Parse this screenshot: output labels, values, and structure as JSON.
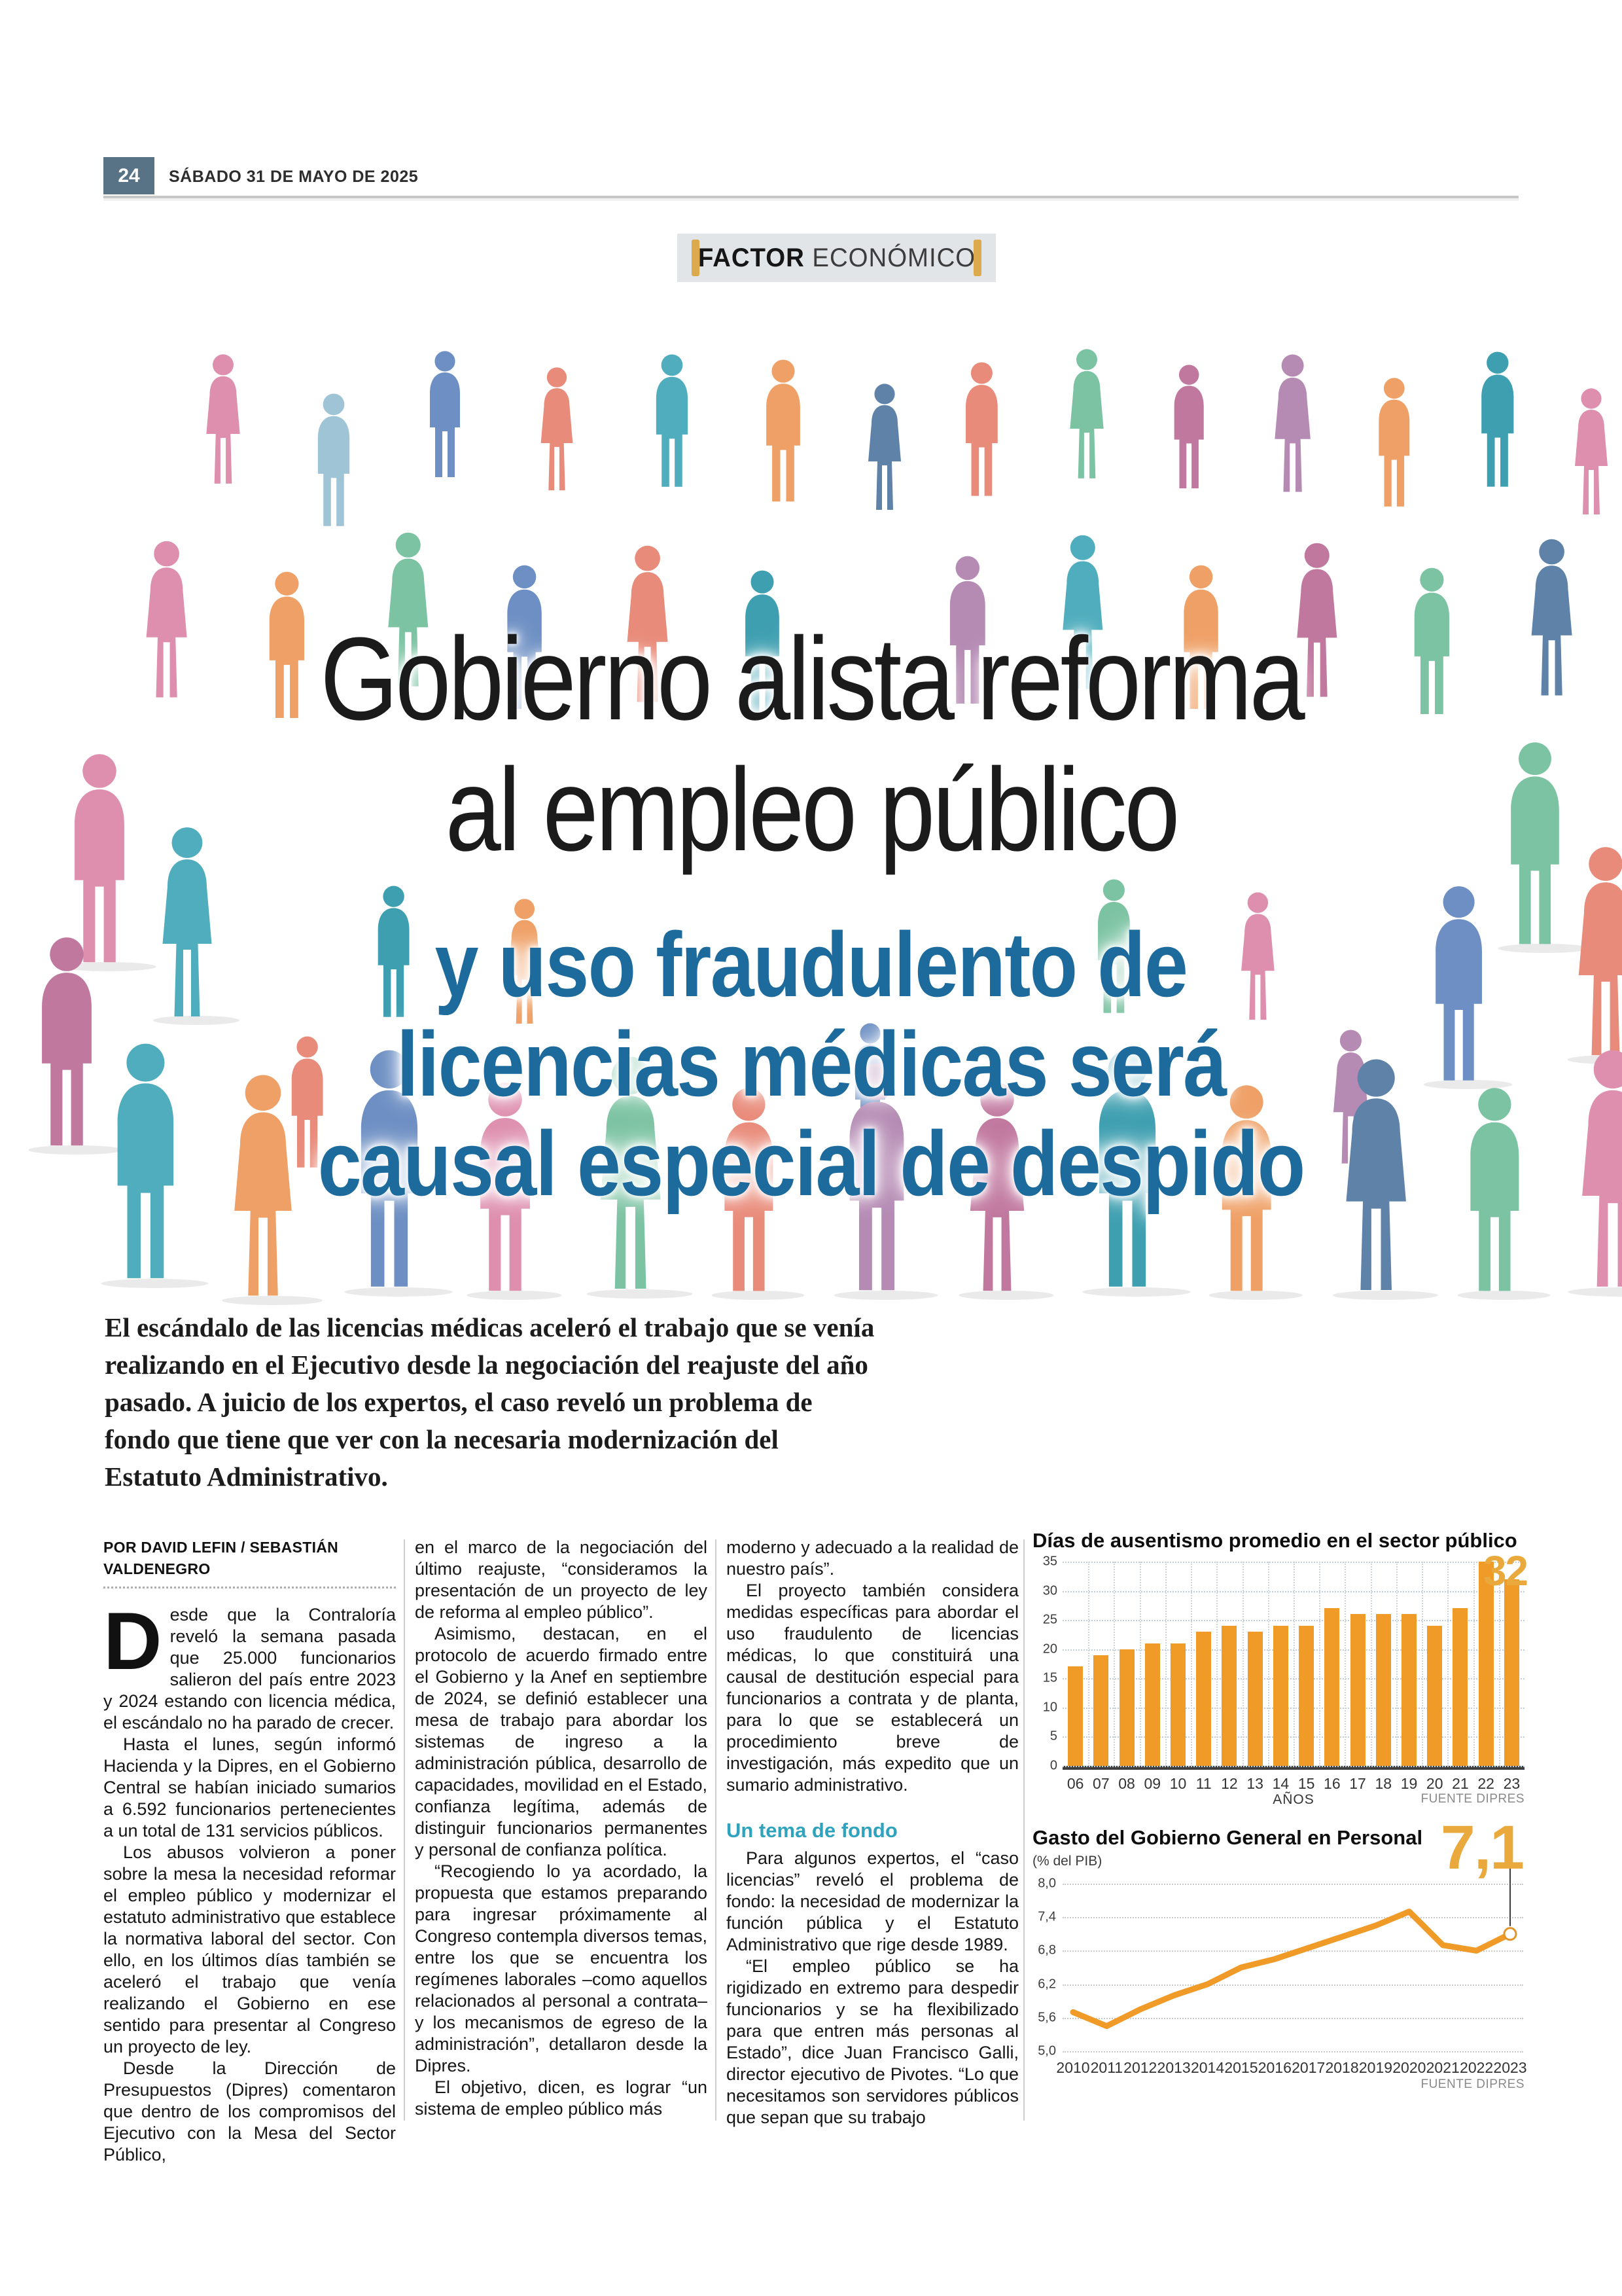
{
  "page": {
    "number": "24",
    "date": "SÁBADO 31 DE MAYO DE 2025"
  },
  "kicker": {
    "bold": "FACTOR",
    "light": "ECONÓMICO"
  },
  "headline": {
    "line1": "Gobierno alista reforma",
    "line2": "al empleo público",
    "sub_line1": "y uso fraudulento de",
    "sub_line2": "licencias médicas será",
    "sub_line3": "causal especial de despido"
  },
  "lead": "El escándalo de las licencias médicas aceleró el trabajo que se venía realizando en el Ejecutivo desde la negociación del reajuste del año pasado. A juicio de los expertos, el caso reveló un problema de fondo que tiene que ver con la necesaria modernización del Estatuto Administrativo.",
  "byline": "POR DAVID LEFIN / SEBASTIÁN VALDENEGRO",
  "article": {
    "col1": {
      "dropcap": "D",
      "paragraphs": [
        "esde que la Contraloría reveló la semana pasada que 25.000 funcionarios salieron del país entre 2023 y 2024 estando con licencia médica, el escándalo no ha parado de crecer.",
        "Hasta el lunes, según informó Hacienda y la Dipres, en el Gobierno Central se habían iniciado sumarios a 6.592 funcionarios pertenecientes a un total de 131 servicios públicos.",
        "Los abusos volvieron a poner sobre la mesa la necesidad reformar el empleo público y modernizar el estatuto administrativo que establece la normativa laboral del sector. Con ello, en los últimos días también se aceleró el trabajo que venía realizando el Gobierno en ese sentido para presentar al Congreso un proyecto de ley.",
        "Desde la Dirección de Presupuestos (Dipres) comentaron que dentro de los compromisos del Ejecutivo con la Mesa del Sector Público,"
      ]
    },
    "col2": {
      "paragraphs": [
        "en el marco de la negociación del último reajuste, “consideramos la presentación de un proyecto de ley de reforma al empleo público”.",
        "Asimismo, destacan, en el protocolo de acuerdo firmado entre el Gobierno y la Anef en septiembre de 2024, se definió establecer una mesa de trabajo para abordar los sistemas de ingreso a la administración pública, desarrollo de capacidades, movilidad en el Estado, confianza legítima, además de distinguir funcionarios permanentes y personal de confianza política.",
        "“Recogiendo lo ya acordado, la propuesta que estamos preparando para ingresar próximamente al Congreso contempla diversos temas, entre los que se encuentra los regímenes laborales –como aquellos relacionados al personal a contrata– y los mecanismos de egreso de la administración”, detallaron desde la Dipres.",
        "El objetivo, dicen, es lograr “un sistema de empleo público más"
      ]
    },
    "col3": {
      "paragraphs_before": [
        "moderno y adecuado a la realidad de nuestro país”.",
        "El proyecto también considera medidas específicas para abordar el uso fraudulento de licencias médicas, lo que constituirá una causal de destitución especial para funcionarios a contrata y de planta, para lo que se establecerá un procedimiento breve de investigación, más expedito que un sumario administrativo."
      ],
      "subhead": "Un tema de fondo",
      "paragraphs_after": [
        "Para algunos expertos, el “caso licencias” reveló el problema de fondo: la necesidad de modernizar la función pública y el Estatuto Administrativo que rige desde 1989.",
        "“El empleo público se ha rigidizado en extremo para despedir funcionarios y se ha flexibilizado para que entren más personas al Estado”, dice Juan Francisco Galli, director ejecutivo de Pivotes. “Lo que necesitamos son servidores públicos que sepan que su trabajo"
      ]
    }
  },
  "chart_data": [
    {
      "type": "bar",
      "title": "Días de ausentismo promedio en el sector público",
      "categories": [
        "06",
        "07",
        "08",
        "09",
        "10",
        "11",
        "12",
        "13",
        "14",
        "15",
        "16",
        "17",
        "18",
        "19",
        "20",
        "21",
        "22",
        "23"
      ],
      "values": [
        17,
        19,
        20,
        21,
        21,
        23,
        24,
        23,
        24,
        24,
        27,
        26,
        26,
        26,
        24,
        27,
        35,
        32
      ],
      "xlabel": "AÑOS",
      "ylabel": "",
      "ylim": [
        0,
        35
      ],
      "yticks": [
        0,
        5,
        10,
        15,
        20,
        25,
        30,
        35
      ],
      "grid": "dotted",
      "highlight_label": "32",
      "source": "FUENTE DIPRES",
      "bar_color": "#F09A28"
    },
    {
      "type": "line",
      "title": "Gasto del Gobierno General en Personal",
      "subtitle": "(% del PIB)",
      "x": [
        "2010",
        "2011",
        "2012",
        "2013",
        "2014",
        "2015",
        "2016",
        "2017",
        "2018",
        "2019",
        "2020",
        "2021",
        "2022",
        "2023"
      ],
      "values": [
        5.7,
        5.45,
        5.75,
        6.0,
        6.2,
        6.5,
        6.65,
        6.85,
        7.05,
        7.25,
        7.5,
        6.9,
        6.8,
        7.1
      ],
      "ylim": [
        5.0,
        8.0
      ],
      "yticks": [
        8.0,
        7.4,
        6.8,
        6.2,
        5.6,
        5.0
      ],
      "ytick_labels": [
        "8,0",
        "7,4",
        "6,8",
        "6,2",
        "5,6",
        "5,0"
      ],
      "grid": "dotted",
      "highlight_label": "7,1",
      "source": "FUENTE DIPRES",
      "line_color": "#F09A28"
    }
  ],
  "colors": {
    "headline_blue": "#1C6B9C",
    "subhead_teal": "#2FA3BD",
    "accent_orange": "#F09A28",
    "big_number_orange": "#E9A93C",
    "kicker_gold": "#DCA94C",
    "folio_bg": "#587286",
    "illustration_palette": [
      "#4FADBD",
      "#7CC3A3",
      "#EFA066",
      "#E98B7A",
      "#DE8FAE",
      "#C1789F",
      "#6D8FC3",
      "#5E82A8",
      "#9EC4D6",
      "#B58BB4",
      "#3E9FB0",
      "#E2B468"
    ]
  }
}
